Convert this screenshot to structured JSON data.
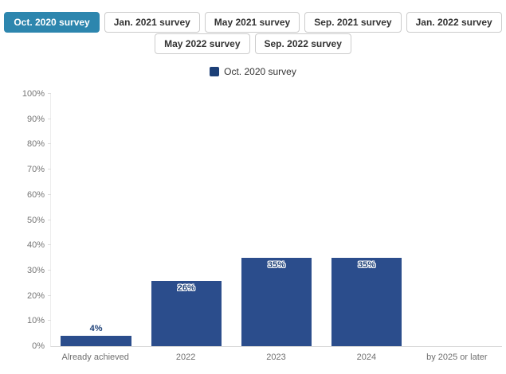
{
  "tabs": {
    "row1": [
      {
        "label": "Oct. 2020 survey",
        "active": true
      },
      {
        "label": "Jan. 2021 survey",
        "active": false
      },
      {
        "label": "May 2021 survey",
        "active": false
      },
      {
        "label": "Sep. 2021 survey",
        "active": false
      },
      {
        "label": "Jan. 2022 survey",
        "active": false
      }
    ],
    "row2": [
      {
        "label": "May 2022 survey",
        "active": false
      },
      {
        "label": "Sep. 2022 survey",
        "active": false
      }
    ]
  },
  "legend": {
    "label": "Oct. 2020 survey",
    "swatch_color": "#1c3f77"
  },
  "colors": {
    "active_tab": "#2d86ae",
    "bar": "#2b4d8c",
    "bar_label": "#1c3f77",
    "axis_text": "#767676"
  },
  "chart_data": {
    "type": "bar",
    "title": "",
    "categories": [
      "Already achieved",
      "2022",
      "2023",
      "2024",
      "by 2025 or later"
    ],
    "series": [
      {
        "name": "Oct. 2020 survey",
        "values": [
          4,
          26,
          35,
          35,
          null
        ]
      }
    ],
    "value_labels": [
      "4%",
      "26%",
      "35%",
      "35%",
      ""
    ],
    "xlabel": "",
    "ylabel": "",
    "ylim": [
      0,
      100
    ],
    "yticks": [
      "0%",
      "10%",
      "20%",
      "30%",
      "40%",
      "50%",
      "60%",
      "70%",
      "80%",
      "90%",
      "100%"
    ],
    "grid": false,
    "legend_position": "top"
  }
}
